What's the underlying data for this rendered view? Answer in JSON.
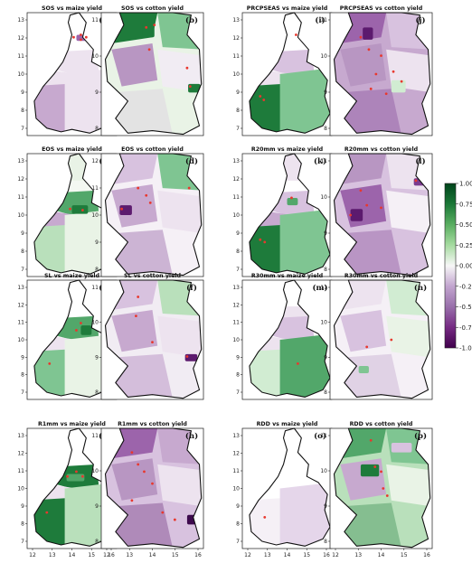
{
  "panels": [
    {
      "id": "a",
      "title": "SOS vs maize yield",
      "label": "(a)",
      "crop": "maize",
      "xticks": [],
      "yticks": [
        "7",
        "8",
        "9",
        "10",
        "11",
        "12",
        "13"
      ],
      "fills": {
        "north": "#ffffff",
        "neck": "#ede3ef",
        "upper": "#ede3ef",
        "west": "#c7a9cf",
        "east": "#ede3ef",
        "east2": "#ede3ef",
        "top": "#ffffff"
      },
      "extra": [
        {
          "c": "#9c64ab",
          "s": [
            0.55,
            0.18,
            0.12,
            0.05
          ]
        }
      ],
      "dots": [
        [
          0.6,
          0.18
        ],
        [
          0.52,
          0.2
        ],
        [
          0.66,
          0.2
        ],
        [
          0.6,
          0.22
        ]
      ]
    },
    {
      "id": "b",
      "title": "SOS vs cotton yield",
      "label": "(b)",
      "crop": "cotton",
      "xticks": [],
      "yticks": [
        "8",
        "9",
        "10",
        "11"
      ],
      "fills": {
        "g1": "#1e7b3b",
        "g2": "#7fc592",
        "base": "#e9f3e6",
        "p1": "#d8c2df",
        "p2": "#b896c2",
        "p3": "#f1ecf3"
      },
      "extra": [
        {
          "c": "#1e7b3b",
          "s": [
            0.85,
            0.58,
            0.12,
            0.07
          ]
        },
        {
          "c": "#1e7b3b",
          "s": [
            0.4,
            0.08,
            0.12,
            0.12
          ]
        }
      ],
      "dots": [
        [
          0.44,
          0.12
        ],
        [
          0.52,
          0.1
        ],
        [
          0.47,
          0.3
        ],
        [
          0.84,
          0.45
        ],
        [
          0.87,
          0.6
        ]
      ]
    },
    {
      "id": "i",
      "title": "PRCPSEAS vs maize yield",
      "label": "(i)",
      "crop": "maize",
      "xticks": [],
      "yticks": [
        "7",
        "8",
        "9",
        "10",
        "11",
        "12",
        "13"
      ],
      "fills": {
        "north": "#ffffff",
        "neck": "#ede3ef",
        "upper": "#d8c2df",
        "west": "#1e7b3b",
        "east": "#7fc592",
        "east2": "#7fc592",
        "top": "#ffffff"
      },
      "extra": [],
      "dots": [
        [
          0.2,
          0.68
        ],
        [
          0.24,
          0.71
        ],
        [
          0.6,
          0.18
        ]
      ]
    },
    {
      "id": "j",
      "title": "PRCPSEAS vs cotton yield",
      "label": "(j)",
      "crop": "cotton",
      "xticks": [],
      "yticks": [
        "8",
        "9",
        "10",
        "11"
      ],
      "fills": {
        "g1": "#9c64ab",
        "g2": "#d8c2df",
        "base": "#c7a9cf",
        "p1": "#7a3b8f",
        "p2": "#b896c2",
        "p3": "#ede3ef"
      },
      "extra": [
        {
          "c": "#5c1a6e",
          "s": [
            0.32,
            0.12,
            0.1,
            0.1
          ]
        },
        {
          "c": "#d1ecd2",
          "s": [
            0.6,
            0.55,
            0.14,
            0.1
          ]
        }
      ],
      "dots": [
        [
          0.3,
          0.2
        ],
        [
          0.38,
          0.3
        ],
        [
          0.5,
          0.35
        ],
        [
          0.45,
          0.5
        ],
        [
          0.62,
          0.48
        ],
        [
          0.7,
          0.56
        ],
        [
          0.4,
          0.62
        ],
        [
          0.55,
          0.66
        ]
      ]
    },
    {
      "id": "c",
      "title": "EOS vs maize yield",
      "label": "(c)",
      "crop": "maize",
      "xticks": [],
      "yticks": [
        "7",
        "8",
        "9",
        "10",
        "11",
        "12",
        "13"
      ],
      "fills": {
        "north": "#f4f8f2",
        "neck": "#c7a9cf",
        "upper": "#52a76a",
        "west": "#b9e0bb",
        "east": "#e9f3e6",
        "east2": "#e9f3e6",
        "top": "#e9f3e6"
      },
      "extra": [
        {
          "c": "#1e7b3b",
          "s": [
            0.5,
            0.42,
            0.18,
            0.07
          ]
        }
      ],
      "dots": [
        [
          0.48,
          0.45
        ],
        [
          0.62,
          0.46
        ]
      ]
    },
    {
      "id": "d",
      "title": "EOS vs cotton yield",
      "label": "(d)",
      "crop": "cotton",
      "xticks": [],
      "yticks": [
        "8",
        "9",
        "10",
        "11",
        "12"
      ],
      "fills": {
        "g1": "#d8c2df",
        "g2": "#7fc592",
        "base": "#f5f0f6",
        "p1": "#7a3b8f",
        "p2": "#c7a9cf",
        "p3": "#ede3ef"
      },
      "extra": [
        {
          "c": "#5c1a6e",
          "s": [
            0.18,
            0.42,
            0.12,
            0.08
          ]
        }
      ],
      "dots": [
        [
          0.2,
          0.45
        ],
        [
          0.36,
          0.28
        ],
        [
          0.44,
          0.34
        ],
        [
          0.48,
          0.4
        ],
        [
          0.86,
          0.28
        ]
      ]
    },
    {
      "id": "k",
      "title": "R20mm vs maize yield",
      "label": "(k)",
      "crop": "maize",
      "xticks": [],
      "yticks": [
        "7",
        "8",
        "9",
        "10",
        "11",
        "12",
        "13"
      ],
      "fills": {
        "north": "#ffffff",
        "neck": "#c7a9cf",
        "upper": "#d8c2df",
        "west": "#1e7b3b",
        "east": "#7fc592",
        "east2": "#7fc592",
        "top": "#ede3ef"
      },
      "extra": [
        {
          "c": "#52a76a",
          "s": [
            0.5,
            0.36,
            0.12,
            0.06
          ]
        }
      ],
      "dots": [
        [
          0.2,
          0.7
        ],
        [
          0.25,
          0.72
        ],
        [
          0.55,
          0.36
        ]
      ]
    },
    {
      "id": "l",
      "title": "R20mm vs cotton yield",
      "label": "(l)",
      "crop": "cotton",
      "xticks": [],
      "yticks": [
        "8",
        "9",
        "10",
        "11"
      ],
      "fills": {
        "g1": "#b896c2",
        "g2": "#ede3ef",
        "base": "#d8c2df",
        "p1": "#7a3b8f",
        "p2": "#9c64ab",
        "p3": "#f5f0f6"
      },
      "extra": [
        {
          "c": "#5c1a6e",
          "s": [
            0.2,
            0.45,
            0.12,
            0.1
          ]
        },
        {
          "c": "#7a3b8f",
          "s": [
            0.82,
            0.2,
            0.12,
            0.06
          ]
        }
      ],
      "dots": [
        [
          0.3,
          0.3
        ],
        [
          0.36,
          0.42
        ],
        [
          0.5,
          0.44
        ],
        [
          0.84,
          0.22
        ],
        [
          0.2,
          0.5
        ]
      ]
    },
    {
      "id": "e",
      "title": "SL vs maize yield",
      "label": "(e)",
      "crop": "maize",
      "xticks": [],
      "yticks": [
        "7",
        "8",
        "9",
        "10",
        "11",
        "12",
        "13"
      ],
      "fills": {
        "north": "#ffffff",
        "neck": "#ede3ef",
        "upper": "#52a76a",
        "west": "#7fc592",
        "east": "#e9f3e6",
        "east2": "#e9f3e6",
        "top": "#ffffff"
      },
      "extra": [
        {
          "c": "#1e7b3b",
          "s": [
            0.6,
            0.38,
            0.12,
            0.08
          ]
        }
      ],
      "dots": [
        [
          0.6,
          0.36
        ],
        [
          0.55,
          0.42
        ],
        [
          0.25,
          0.7
        ]
      ]
    },
    {
      "id": "f",
      "title": "SL vs cotton yield",
      "label": "(f)",
      "crop": "cotton",
      "xticks": [],
      "yticks": [
        "8",
        "9",
        "10",
        "11"
      ],
      "fills": {
        "g1": "#d8c2df",
        "g2": "#b9e0bb",
        "base": "#f1ecf3",
        "p1": "#9c64ab",
        "p2": "#c7a9cf",
        "p3": "#ede3ef"
      },
      "extra": [
        {
          "c": "#5c1a6e",
          "s": [
            0.82,
            0.62,
            0.12,
            0.06
          ]
        }
      ],
      "dots": [
        [
          0.36,
          0.14
        ],
        [
          0.34,
          0.3
        ],
        [
          0.5,
          0.52
        ],
        [
          0.84,
          0.64
        ]
      ]
    },
    {
      "id": "m",
      "title": "R30mm vs maize yield",
      "label": "(m)",
      "crop": "maize",
      "xticks": [],
      "yticks": [
        "7",
        "8",
        "9",
        "10",
        "11",
        "12",
        "13"
      ],
      "fills": {
        "north": "#ede3ef",
        "neck": "#ede3ef",
        "upper": "#d8c2df",
        "west": "#d1ecd2",
        "east": "#52a76a",
        "east2": "#52a76a",
        "top": "#ffffff"
      },
      "extra": [],
      "dots": [
        [
          0.62,
          0.7
        ]
      ]
    },
    {
      "id": "n",
      "title": "R30mm vs cotton yield",
      "label": "(n)",
      "crop": "cotton",
      "xticks": [],
      "yticks": [
        "8",
        "9",
        "10",
        "11"
      ],
      "fills": {
        "g1": "#ede3ef",
        "g2": "#d1ecd2",
        "base": "#f5f0f6",
        "p1": "#b896c2",
        "p2": "#d8c2df",
        "p3": "#e9f3e6"
      },
      "extra": [
        {
          "c": "#7fc592",
          "s": [
            0.28,
            0.72,
            0.1,
            0.06
          ]
        }
      ],
      "dots": [
        [
          0.36,
          0.56
        ],
        [
          0.6,
          0.5
        ]
      ]
    },
    {
      "id": "g",
      "title": "R1mm vs maize yield",
      "label": "(g)",
      "crop": "maize",
      "xticks": [
        "12",
        "13",
        "14",
        "15",
        "16"
      ],
      "yticks": [
        "7",
        "8",
        "9",
        "10",
        "11",
        "12",
        "13"
      ],
      "fills": {
        "north": "#ffffff",
        "neck": "#ede3ef",
        "upper": "#1e7b3b",
        "west": "#1e7b3b",
        "east": "#b9e0bb",
        "east2": "#b9e0bb",
        "top": "#ffffff"
      },
      "extra": [
        {
          "c": "#52a76a",
          "s": [
            0.44,
            0.38,
            0.2,
            0.06
          ]
        }
      ],
      "dots": [
        [
          0.45,
          0.4
        ],
        [
          0.55,
          0.36
        ],
        [
          0.62,
          0.4
        ],
        [
          0.22,
          0.7
        ]
      ]
    },
    {
      "id": "h",
      "title": "R1mm vs cotton yield",
      "label": "(h)",
      "crop": "cotton",
      "xticks": [
        "12",
        "13",
        "14",
        "15",
        "16"
      ],
      "yticks": [
        "8",
        "9",
        "10",
        "11"
      ],
      "fills": {
        "g1": "#9c64ab",
        "g2": "#c7a9cf",
        "base": "#d8c2df",
        "p1": "#5c1a6e",
        "p2": "#b896c2",
        "p3": "#ede3ef"
      },
      "extra": [
        {
          "c": "#3d0a4d",
          "s": [
            0.84,
            0.72,
            0.12,
            0.08
          ]
        }
      ],
      "dots": [
        [
          0.3,
          0.2
        ],
        [
          0.36,
          0.3
        ],
        [
          0.42,
          0.36
        ],
        [
          0.5,
          0.46
        ],
        [
          0.3,
          0.6
        ],
        [
          0.6,
          0.7
        ],
        [
          0.72,
          0.76
        ]
      ]
    },
    {
      "id": "o",
      "title": "RDD vs maize yield",
      "label": "(o)",
      "crop": "maize",
      "xticks": [
        "12",
        "13",
        "14",
        "15",
        "16"
      ],
      "yticks": [
        "7",
        "8",
        "9",
        "10",
        "11",
        "12",
        "13"
      ],
      "fills": {
        "north": "#ffffff",
        "neck": "#ffffff",
        "upper": "#ffffff",
        "west": "#f5f0f6",
        "east": "#e5d6ea",
        "east2": "#e5d6ea",
        "top": "#ffffff"
      },
      "extra": [],
      "dots": [
        [
          0.25,
          0.74
        ]
      ]
    },
    {
      "id": "p",
      "title": "RDD vs cotton yield",
      "label": "(p)",
      "crop": "cotton",
      "xticks": [
        "12",
        "13",
        "14",
        "15",
        "16"
      ],
      "yticks": [
        "8",
        "9",
        "10",
        "11"
      ],
      "fills": {
        "g1": "#52a76a",
        "g2": "#7fc592",
        "base": "#b9e0bb",
        "p1": "#1e7b3b",
        "p2": "#c7a9cf",
        "p3": "#e9f3e6"
      },
      "extra": [
        {
          "c": "#1e7b3b",
          "s": [
            0.3,
            0.3,
            0.18,
            0.1
          ]
        },
        {
          "c": "#d8c2df",
          "s": [
            0.6,
            0.12,
            0.2,
            0.08
          ]
        }
      ],
      "dots": [
        [
          0.4,
          0.1
        ],
        [
          0.44,
          0.32
        ],
        [
          0.5,
          0.36
        ],
        [
          0.52,
          0.5
        ],
        [
          0.56,
          0.56
        ]
      ]
    }
  ],
  "colorbar": {
    "ticks": [
      "1.00",
      "0.75",
      "0.50",
      "0.25",
      "0.00",
      "-0.25",
      "-0.50",
      "-0.75",
      "-1.00"
    ],
    "colors": [
      "#00441b",
      "#1b7837",
      "#5aae61",
      "#a6dba0",
      "#f7f7f7",
      "#c2a5cf",
      "#9970ab",
      "#762a83",
      "#40004b"
    ]
  },
  "colors": {
    "dot": "#e8382e"
  }
}
